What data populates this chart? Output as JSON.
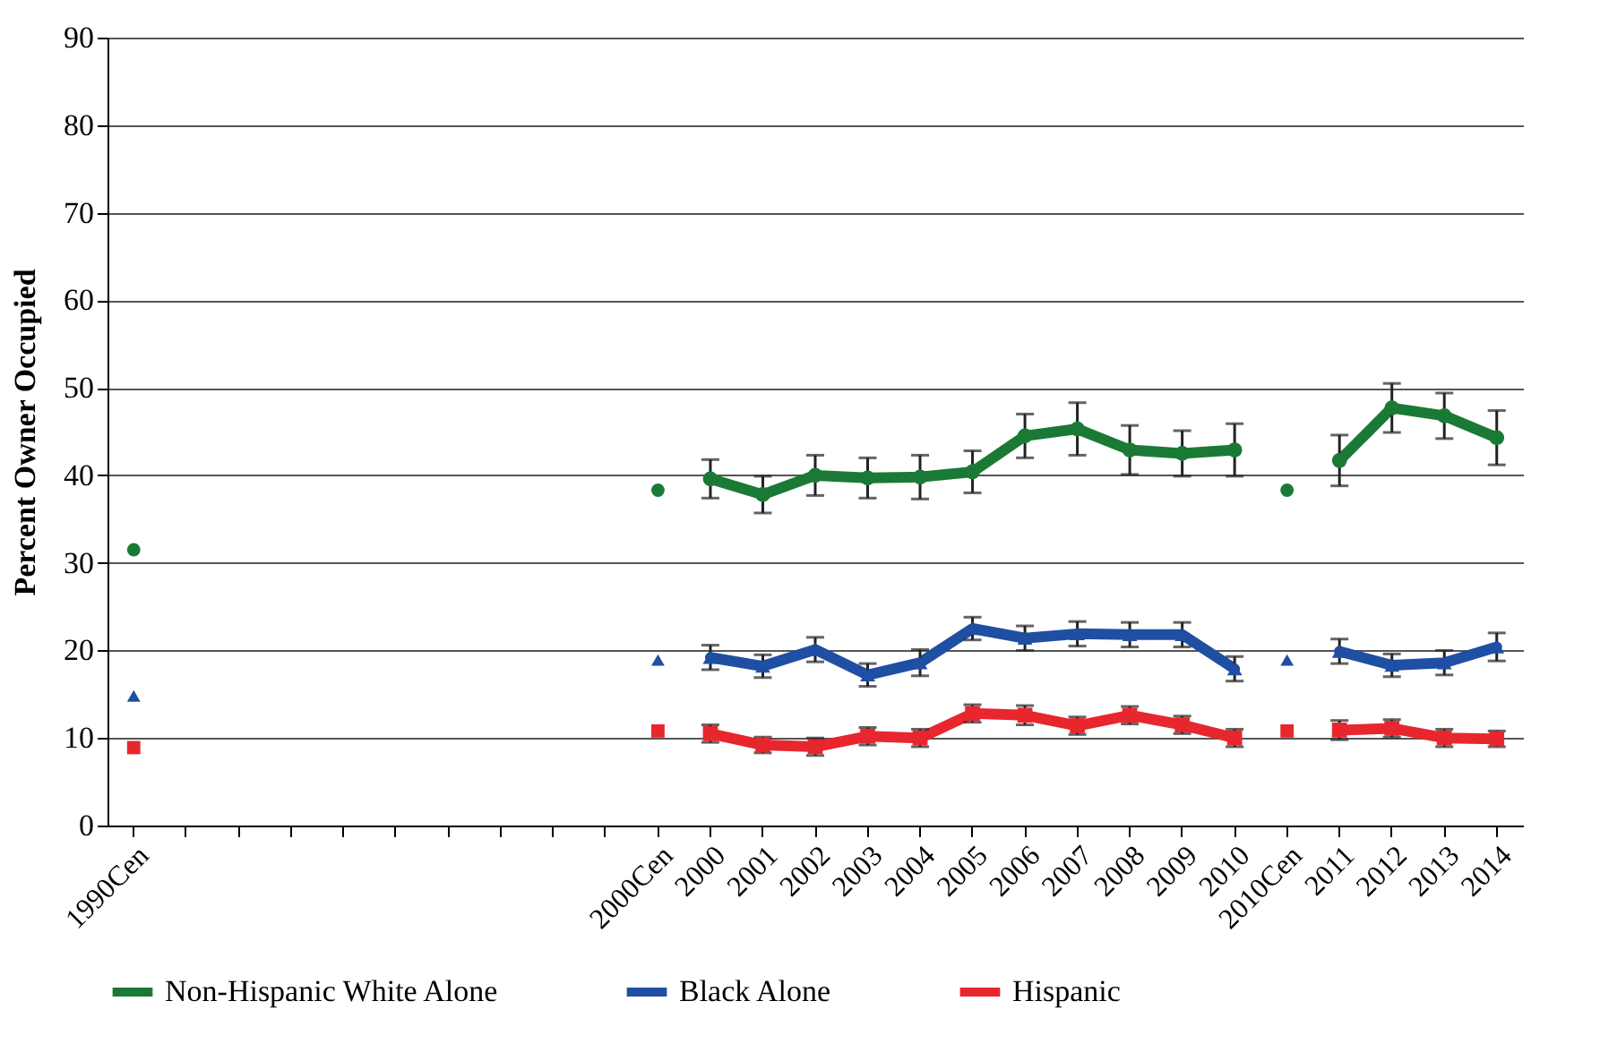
{
  "chart_data": {
    "type": "line",
    "ylabel": "Percent Owner Occupied",
    "categories": [
      "1990Cen",
      null,
      null,
      null,
      null,
      null,
      null,
      null,
      null,
      null,
      "2000Cen",
      "2000",
      "2001",
      "2002",
      "2003",
      "2004",
      "2005",
      "2006",
      "2007",
      "2008",
      "2009",
      "2010",
      "2010Cen",
      "2011",
      "2012",
      "2013",
      "2014"
    ],
    "series": [
      {
        "name": "Non-Hispanic White Alone",
        "type": "line",
        "marker": "circle",
        "color": "#1a7a35",
        "values": [
          null,
          null,
          null,
          null,
          null,
          null,
          null,
          null,
          null,
          null,
          null,
          39.6,
          37.8,
          40.0,
          39.7,
          39.8,
          40.4,
          44.5,
          45.3,
          42.9,
          42.5,
          42.9,
          null,
          41.7,
          47.7,
          46.8,
          44.3
        ],
        "errors": [
          null,
          null,
          null,
          null,
          null,
          null,
          null,
          null,
          null,
          null,
          null,
          2.2,
          2.1,
          2.3,
          2.3,
          2.5,
          2.4,
          2.5,
          3.0,
          2.8,
          2.6,
          3.0,
          null,
          2.9,
          2.8,
          2.6,
          3.1
        ]
      },
      {
        "name": "Black Alone",
        "type": "line",
        "marker": "triangle",
        "color": "#1f4fa3",
        "values": [
          null,
          null,
          null,
          null,
          null,
          null,
          null,
          null,
          null,
          null,
          null,
          19.2,
          18.2,
          20.1,
          17.2,
          18.6,
          22.5,
          21.4,
          21.9,
          21.8,
          21.8,
          17.9,
          null,
          19.9,
          18.3,
          18.6,
          20.4
        ],
        "errors": [
          null,
          null,
          null,
          null,
          null,
          null,
          null,
          null,
          null,
          null,
          null,
          1.4,
          1.3,
          1.4,
          1.3,
          1.5,
          1.3,
          1.4,
          1.4,
          1.4,
          1.4,
          1.4,
          null,
          1.4,
          1.3,
          1.4,
          1.6
        ]
      },
      {
        "name": "Hispanic",
        "type": "line",
        "marker": "square",
        "color": "#e8262e",
        "values": [
          null,
          null,
          null,
          null,
          null,
          null,
          null,
          null,
          null,
          null,
          null,
          10.5,
          9.2,
          9.0,
          10.2,
          10.0,
          12.8,
          12.6,
          11.4,
          12.6,
          11.5,
          10.0,
          null,
          10.9,
          11.1,
          10.0,
          9.9
        ],
        "errors": [
          null,
          null,
          null,
          null,
          null,
          null,
          null,
          null,
          null,
          null,
          null,
          1.0,
          0.9,
          1.0,
          1.0,
          1.0,
          1.0,
          1.1,
          1.0,
          1.0,
          1.0,
          1.0,
          null,
          1.1,
          1.0,
          1.0,
          0.9
        ]
      },
      {
        "type": "scatter",
        "marker": "circle",
        "color": "#1a7a35",
        "values": [
          31.5,
          null,
          null,
          null,
          null,
          null,
          null,
          null,
          null,
          null,
          38.3,
          null,
          null,
          null,
          null,
          null,
          null,
          null,
          null,
          null,
          null,
          null,
          38.3,
          null,
          null,
          null,
          null
        ]
      },
      {
        "type": "scatter",
        "marker": "triangle",
        "color": "#1f4fa3",
        "values": [
          14.8,
          null,
          null,
          null,
          null,
          null,
          null,
          null,
          null,
          null,
          18.9,
          null,
          null,
          null,
          null,
          null,
          null,
          null,
          null,
          null,
          null,
          null,
          18.9,
          null,
          null,
          null,
          null
        ]
      },
      {
        "type": "scatter",
        "marker": "square",
        "color": "#e8262e",
        "values": [
          8.9,
          null,
          null,
          null,
          null,
          null,
          null,
          null,
          null,
          null,
          10.8,
          null,
          null,
          null,
          null,
          null,
          null,
          null,
          null,
          null,
          null,
          null,
          10.8,
          null,
          null,
          null,
          null
        ]
      }
    ],
    "ylim": [
      0,
      90
    ],
    "yticks": [
      0,
      10,
      20,
      30,
      40,
      50,
      60,
      70,
      80,
      90
    ],
    "grid": "y",
    "legend": "bottom"
  }
}
